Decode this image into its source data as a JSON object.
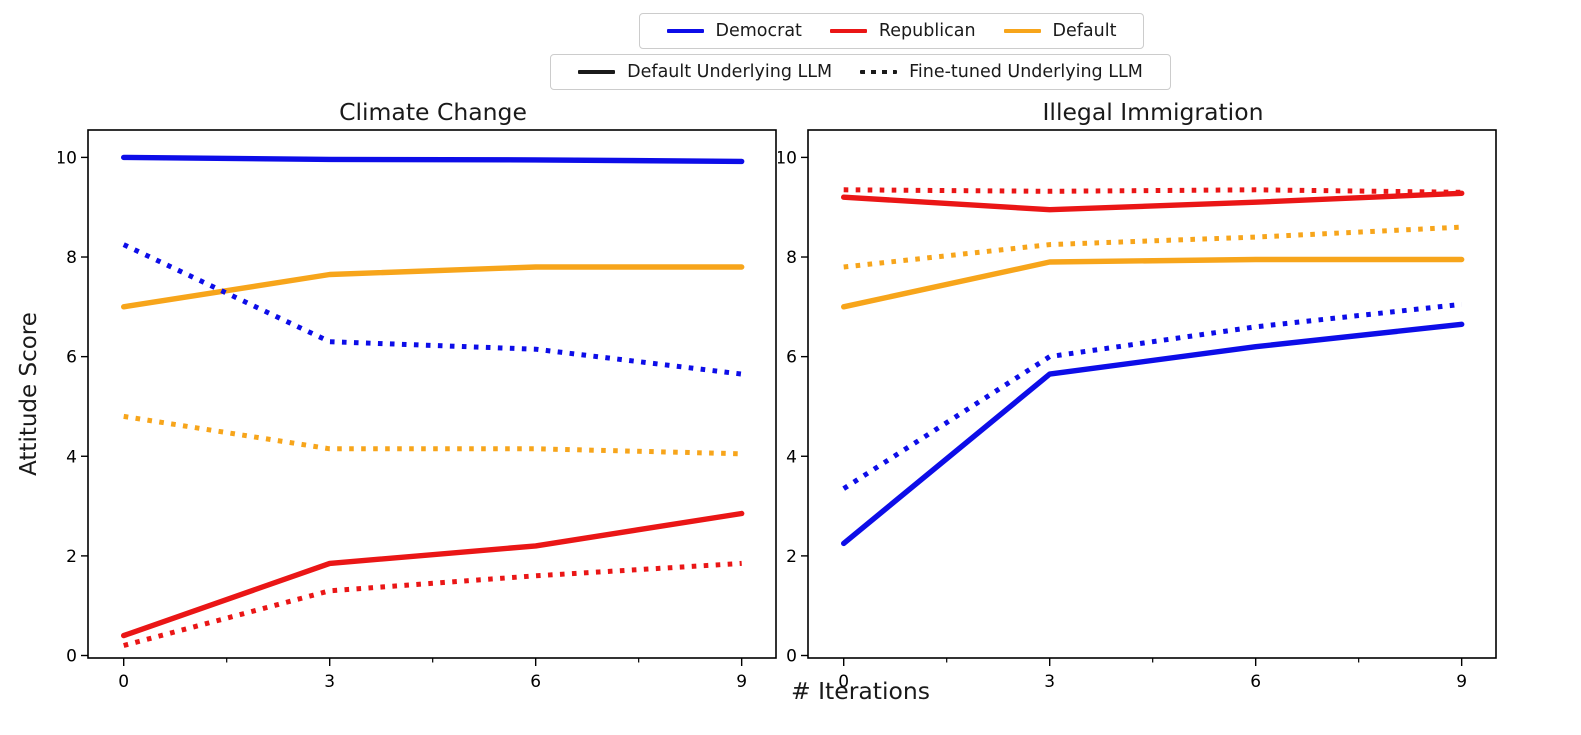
{
  "figure": {
    "ylabel": "Attitude Score",
    "xlabel": "# Iterations"
  },
  "colors": {
    "democrat": "#0d0de8",
    "republican": "#ea1616",
    "default_persona": "#f7a51b",
    "legend_line": "#1a1a1a",
    "axis": "#000000"
  },
  "party_legend": {
    "items": [
      {
        "label": "Democrat",
        "color": "#0d0de8",
        "style": "solid"
      },
      {
        "label": "Republican",
        "color": "#ea1616",
        "style": "solid"
      },
      {
        "label": "Default",
        "color": "#f7a51b",
        "style": "solid"
      }
    ]
  },
  "llm_legend": {
    "items": [
      {
        "label": "Default Underlying LLM",
        "color": "#1a1a1a",
        "style": "solid"
      },
      {
        "label": "Fine-tuned Underlying LLM",
        "color": "#1a1a1a",
        "style": "dotted"
      }
    ]
  },
  "chart_data": [
    {
      "type": "line",
      "title": "Climate Change",
      "x": [
        0,
        3,
        6,
        9
      ],
      "xticks": [
        0,
        3,
        6,
        9
      ],
      "xticks_minor": [
        1.5,
        4.5,
        7.5
      ],
      "yticks": [
        0,
        2,
        4,
        6,
        8,
        10
      ],
      "xlim": [
        -0.52,
        9.5
      ],
      "ylim": [
        -0.05,
        10.55
      ],
      "grid": false,
      "series": [
        {
          "name": "Democrat — Default Underlying LLM",
          "party": "Democrat",
          "llm": "default",
          "line": "solid",
          "color": "#0d0de8",
          "values": [
            10.0,
            9.96,
            9.95,
            9.92
          ]
        },
        {
          "name": "Republican — Default Underlying LLM",
          "party": "Republican",
          "llm": "default",
          "line": "solid",
          "color": "#ea1616",
          "values": [
            0.4,
            1.85,
            2.2,
            2.85
          ]
        },
        {
          "name": "Default — Default Underlying LLM",
          "party": "Default",
          "llm": "default",
          "line": "solid",
          "color": "#f7a51b",
          "values": [
            7.0,
            7.65,
            7.8,
            7.8
          ]
        },
        {
          "name": "Democrat — Fine-tuned Underlying LLM",
          "party": "Democrat",
          "llm": "fine-tuned",
          "line": "dotted",
          "color": "#0d0de8",
          "values": [
            8.25,
            6.3,
            6.15,
            5.65
          ]
        },
        {
          "name": "Republican — Fine-tuned Underlying LLM",
          "party": "Republican",
          "llm": "fine-tuned",
          "line": "dotted",
          "color": "#ea1616",
          "values": [
            0.2,
            1.3,
            1.6,
            1.85
          ]
        },
        {
          "name": "Default — Fine-tuned Underlying LLM",
          "party": "Default",
          "llm": "fine-tuned",
          "line": "dotted",
          "color": "#f7a51b",
          "values": [
            4.8,
            4.15,
            4.15,
            4.05
          ]
        }
      ]
    },
    {
      "type": "line",
      "title": "Illegal Immigration",
      "x": [
        0,
        3,
        6,
        9
      ],
      "xticks": [
        0,
        3,
        6,
        9
      ],
      "xticks_minor": [
        1.5,
        4.5,
        7.5
      ],
      "yticks": [
        0,
        2,
        4,
        6,
        8,
        10
      ],
      "xlim": [
        -0.52,
        9.5
      ],
      "ylim": [
        -0.05,
        10.55
      ],
      "grid": false,
      "series": [
        {
          "name": "Democrat — Default Underlying LLM",
          "party": "Democrat",
          "llm": "default",
          "line": "solid",
          "color": "#0d0de8",
          "values": [
            2.25,
            5.65,
            6.2,
            6.65
          ]
        },
        {
          "name": "Republican — Default Underlying LLM",
          "party": "Republican",
          "llm": "default",
          "line": "solid",
          "color": "#ea1616",
          "values": [
            9.2,
            8.95,
            9.1,
            9.28
          ]
        },
        {
          "name": "Default — Default Underlying LLM",
          "party": "Default",
          "llm": "default",
          "line": "solid",
          "color": "#f7a51b",
          "values": [
            7.0,
            7.9,
            7.95,
            7.95
          ]
        },
        {
          "name": "Democrat — Fine-tuned Underlying LLM",
          "party": "Democrat",
          "llm": "fine-tuned",
          "line": "dotted",
          "color": "#0d0de8",
          "values": [
            3.35,
            6.0,
            6.6,
            7.05
          ]
        },
        {
          "name": "Republican — Fine-tuned Underlying LLM",
          "party": "Republican",
          "llm": "fine-tuned",
          "line": "dotted",
          "color": "#ea1616",
          "values": [
            9.35,
            9.32,
            9.35,
            9.3
          ]
        },
        {
          "name": "Default — Fine-tuned Underlying LLM",
          "party": "Default",
          "llm": "fine-tuned",
          "line": "dotted",
          "color": "#f7a51b",
          "values": [
            7.8,
            8.25,
            8.4,
            8.6
          ]
        }
      ]
    }
  ]
}
